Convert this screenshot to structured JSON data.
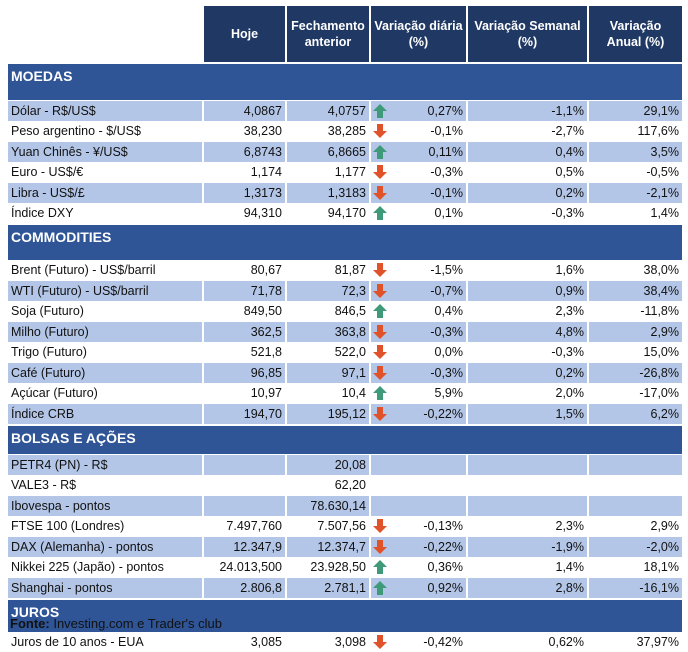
{
  "headers": [
    "",
    "Hoje",
    "Fechamento anterior",
    "Variação diária (%)",
    "Variação Semanal (%)",
    "Variação Anual (%)"
  ],
  "colors": {
    "header": "#203864",
    "section": "#2f5597",
    "alt_row": "#b4c6e7",
    "up_arrow": "#3f9a7a",
    "down_arrow": "#e0522a"
  },
  "sections": [
    {
      "title": "MOEDAS",
      "height": 32,
      "rows": [
        {
          "name": "Dólar - R$/US$",
          "hoje": "4,0867",
          "fech": "4,0757",
          "dir": "up",
          "dia": "0,27%",
          "sem": "-1,1%",
          "ano": "29,1%"
        },
        {
          "name": "Peso argentino - $/US$",
          "hoje": "38,230",
          "fech": "38,285",
          "dir": "down",
          "dia": "-0,1%",
          "sem": "-2,7%",
          "ano": "117,6%"
        },
        {
          "name": "Yuan Chinês - ¥/US$",
          "hoje": "6,8743",
          "fech": "6,8665",
          "dir": "up",
          "dia": "0,11%",
          "sem": "0,4%",
          "ano": "3,5%"
        },
        {
          "name": "Euro - US$/€",
          "hoje": "1,174",
          "fech": "1,177",
          "dir": "down",
          "dia": "-0,3%",
          "sem": "0,5%",
          "ano": "-0,5%"
        },
        {
          "name": "Libra - US$/£",
          "hoje": "1,3173",
          "fech": "1,3183",
          "dir": "down",
          "dia": "-0,1%",
          "sem": "0,2%",
          "ano": "-2,1%"
        },
        {
          "name": "Índice DXY",
          "hoje": "94,310",
          "fech": "94,170",
          "dir": "up",
          "dia": "0,1%",
          "sem": "-0,3%",
          "ano": "1,4%"
        }
      ]
    },
    {
      "title": "COMMODITIES",
      "height": 31,
      "rows": [
        {
          "name": "Brent (Futuro) - US$/barril",
          "hoje": "80,67",
          "fech": "81,87",
          "dir": "down",
          "dia": "-1,5%",
          "sem": "1,6%",
          "ano": "38,0%"
        },
        {
          "name": "WTI (Futuro) - US$/barril",
          "hoje": "71,78",
          "fech": "72,3",
          "dir": "down",
          "dia": "-0,7%",
          "sem": "0,9%",
          "ano": "38,4%"
        },
        {
          "name": "Soja (Futuro)",
          "hoje": "849,50",
          "fech": "846,5",
          "dir": "up",
          "dia": "0,4%",
          "sem": "2,3%",
          "ano": "-11,8%"
        },
        {
          "name": "Milho (Futuro)",
          "hoje": "362,5",
          "fech": "363,8",
          "dir": "down",
          "dia": "-0,3%",
          "sem": "4,8%",
          "ano": "2,9%"
        },
        {
          "name": "Trigo (Futuro)",
          "hoje": "521,8",
          "fech": "522,0",
          "dir": "down",
          "dia": "0,0%",
          "sem": "-0,3%",
          "ano": "15,0%"
        },
        {
          "name": "Café (Futuro)",
          "hoje": "96,85",
          "fech": "97,1",
          "dir": "down",
          "dia": "-0,3%",
          "sem": "0,2%",
          "ano": "-26,8%"
        },
        {
          "name": "Açúcar (Futuro)",
          "hoje": "10,97",
          "fech": "10,4",
          "dir": "up",
          "dia": "5,9%",
          "sem": "2,0%",
          "ano": "-17,0%"
        },
        {
          "name": "Índice CRB",
          "hoje": "194,70",
          "fech": "195,12",
          "dir": "down",
          "dia": "-0,22%",
          "sem": "1,5%",
          "ano": "6,2%"
        }
      ]
    },
    {
      "title": "BOLSAS E AÇÕES",
      "height": 24,
      "rows": [
        {
          "name": "PETR4 (PN) - R$",
          "hoje": "",
          "fech": "20,08",
          "dir": "",
          "dia": "",
          "sem": "",
          "ano": ""
        },
        {
          "name": "VALE3 - R$",
          "hoje": "",
          "fech": "62,20",
          "dir": "",
          "dia": "",
          "sem": "",
          "ano": ""
        },
        {
          "name": "Ibovespa - pontos",
          "hoje": "",
          "fech": "78.630,14",
          "dir": "",
          "dia": "",
          "sem": "",
          "ano": ""
        },
        {
          "name": "FTSE 100 (Londres)",
          "hoje": "7.497,760",
          "fech": "7.507,56",
          "dir": "down",
          "dia": "-0,13%",
          "sem": "2,3%",
          "ano": "2,9%"
        },
        {
          "name": "DAX (Alemanha) - pontos",
          "hoje": "12.347,9",
          "fech": "12.374,7",
          "dir": "down",
          "dia": "-0,22%",
          "sem": "-1,9%",
          "ano": "-2,0%"
        },
        {
          "name": "Nikkei 225 (Japão) - pontos",
          "hoje": "24.013,500",
          "fech": "23.928,50",
          "dir": "up",
          "dia": "0,36%",
          "sem": "1,4%",
          "ano": "18,1%"
        },
        {
          "name": "Shanghai - pontos",
          "hoje": "2.806,8",
          "fech": "2.781,1",
          "dir": "up",
          "dia": "0,92%",
          "sem": "2,8%",
          "ano": "-16,1%"
        }
      ]
    },
    {
      "title": "JUROS",
      "height": 28,
      "rows": [
        {
          "name": "Juros de 10 anos - EUA",
          "hoje": "3,085",
          "fech": "3,098",
          "dir": "down",
          "dia": "-0,42%",
          "sem": "0,62%",
          "ano": "37,97%"
        }
      ]
    }
  ],
  "footer": {
    "label": "Fonte:",
    "text": " Investing.com e Trader's club"
  }
}
